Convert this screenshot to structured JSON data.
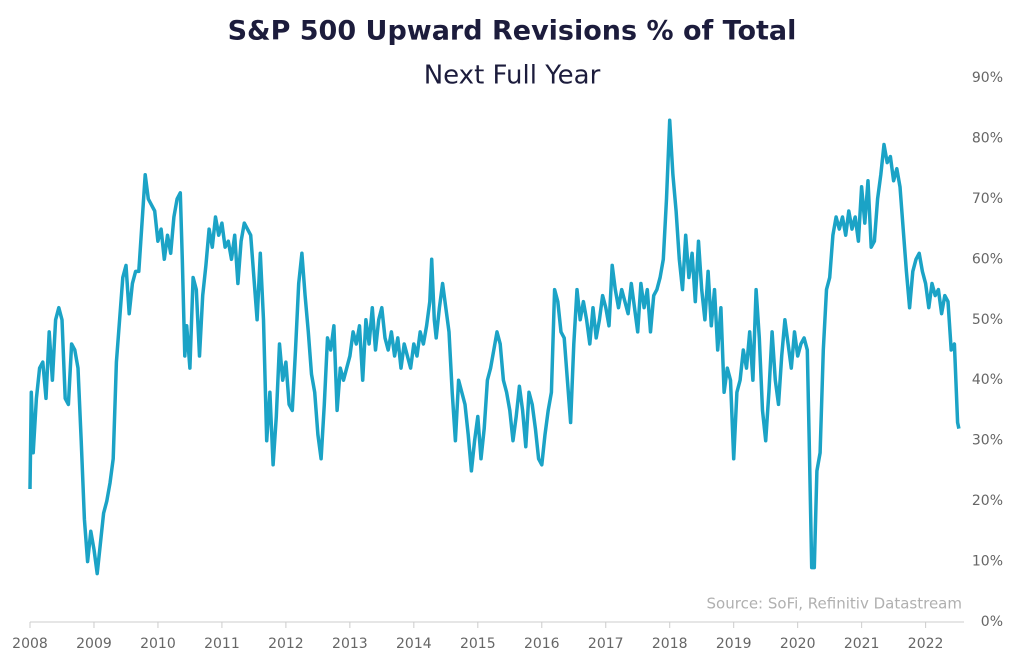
{
  "chart_data": {
    "type": "line",
    "title": "S&P 500 Upward Revisions % of Total",
    "subtitle": "Next Full Year",
    "source": "Source: SoFi, Refinitiv Datastream",
    "x": [
      2008.0,
      2008.02,
      2008.05,
      2008.1,
      2008.15,
      2008.2,
      2008.25,
      2008.3,
      2008.35,
      2008.4,
      2008.45,
      2008.5,
      2008.55,
      2008.6,
      2008.65,
      2008.7,
      2008.75,
      2008.8,
      2008.85,
      2008.9,
      2008.95,
      2009.0,
      2009.05,
      2009.1,
      2009.15,
      2009.2,
      2009.25,
      2009.3,
      2009.35,
      2009.4,
      2009.45,
      2009.5,
      2009.55,
      2009.6,
      2009.65,
      2009.7,
      2009.75,
      2009.8,
      2009.85,
      2009.95,
      2010.0,
      2010.05,
      2010.1,
      2010.15,
      2010.2,
      2010.25,
      2010.3,
      2010.35,
      2010.38,
      2010.42,
      2010.45,
      2010.5,
      2010.55,
      2010.6,
      2010.65,
      2010.7,
      2010.75,
      2010.8,
      2010.85,
      2010.9,
      2010.95,
      2011.0,
      2011.05,
      2011.1,
      2011.15,
      2011.2,
      2011.25,
      2011.3,
      2011.35,
      2011.45,
      2011.5,
      2011.55,
      2011.6,
      2011.65,
      2011.7,
      2011.75,
      2011.8,
      2011.85,
      2011.9,
      2011.95,
      2012.0,
      2012.05,
      2012.1,
      2012.15,
      2012.2,
      2012.25,
      2012.3,
      2012.35,
      2012.4,
      2012.45,
      2012.5,
      2012.55,
      2012.6,
      2012.65,
      2012.7,
      2012.75,
      2012.8,
      2012.85,
      2012.9,
      2013.0,
      2013.05,
      2013.1,
      2013.15,
      2013.2,
      2013.25,
      2013.3,
      2013.35,
      2013.4,
      2013.45,
      2013.5,
      2013.55,
      2013.6,
      2013.65,
      2013.7,
      2013.75,
      2013.8,
      2013.85,
      2013.95,
      2014.0,
      2014.05,
      2014.1,
      2014.15,
      2014.2,
      2014.25,
      2014.28,
      2014.32,
      2014.35,
      2014.4,
      2014.45,
      2014.5,
      2014.55,
      2014.6,
      2014.65,
      2014.7,
      2014.75,
      2014.8,
      2014.85,
      2014.9,
      2014.95,
      2015.0,
      2015.05,
      2015.1,
      2015.15,
      2015.2,
      2015.25,
      2015.3,
      2015.35,
      2015.4,
      2015.45,
      2015.5,
      2015.55,
      2015.6,
      2015.65,
      2015.7,
      2015.75,
      2015.8,
      2015.85,
      2015.9,
      2015.95,
      2016.0,
      2016.05,
      2016.1,
      2016.15,
      2016.2,
      2016.25,
      2016.3,
      2016.35,
      2016.4,
      2016.45,
      2016.5,
      2016.55,
      2016.6,
      2016.65,
      2016.7,
      2016.75,
      2016.8,
      2016.85,
      2016.9,
      2016.95,
      2017.0,
      2017.05,
      2017.1,
      2017.15,
      2017.2,
      2017.25,
      2017.3,
      2017.35,
      2017.4,
      2017.45,
      2017.5,
      2017.55,
      2017.6,
      2017.65,
      2017.7,
      2017.75,
      2017.8,
      2017.85,
      2017.9,
      2017.95,
      2018.0,
      2018.05,
      2018.1,
      2018.15,
      2018.2,
      2018.25,
      2018.3,
      2018.35,
      2018.4,
      2018.45,
      2018.5,
      2018.55,
      2018.6,
      2018.65,
      2018.7,
      2018.75,
      2018.8,
      2018.85,
      2018.9,
      2018.95,
      2019.0,
      2019.05,
      2019.1,
      2019.15,
      2019.2,
      2019.25,
      2019.3,
      2019.35,
      2019.4,
      2019.45,
      2019.5,
      2019.55,
      2019.6,
      2019.65,
      2019.7,
      2019.75,
      2019.8,
      2019.85,
      2019.9,
      2019.95,
      2020.0,
      2020.05,
      2020.1,
      2020.15,
      2020.18,
      2020.22,
      2020.26,
      2020.3,
      2020.35,
      2020.4,
      2020.45,
      2020.5,
      2020.55,
      2020.6,
      2020.65,
      2020.7,
      2020.75,
      2020.8,
      2020.85,
      2020.9,
      2020.95,
      2021.0,
      2021.05,
      2021.1,
      2021.15,
      2021.2,
      2021.25,
      2021.3,
      2021.35,
      2021.4,
      2021.45,
      2021.5,
      2021.55,
      2021.6,
      2021.65,
      2021.7,
      2021.75,
      2021.8,
      2021.85,
      2021.9,
      2021.95,
      2022.0,
      2022.05,
      2022.1,
      2022.15,
      2022.2,
      2022.25,
      2022.3,
      2022.35,
      2022.4,
      2022.45,
      2022.5,
      2022.52
    ],
    "series": [
      {
        "color": "#1ba3c6",
        "values": [
          22,
          38,
          28,
          37,
          42,
          43,
          37,
          48,
          40,
          50,
          52,
          50,
          37,
          36,
          46,
          45,
          42,
          30,
          17,
          10,
          15,
          12,
          8,
          13,
          18,
          20,
          23,
          27,
          43,
          50,
          57,
          59,
          51,
          56,
          58,
          58,
          66,
          74,
          70,
          68,
          63,
          65,
          60,
          64,
          61,
          67,
          70,
          71,
          60,
          44,
          49,
          42,
          57,
          55,
          44,
          54,
          59,
          65,
          62,
          67,
          64,
          66,
          62,
          63,
          60,
          64,
          56,
          63,
          66,
          64,
          57,
          50,
          61,
          50,
          30,
          38,
          26,
          34,
          46,
          40,
          43,
          36,
          35,
          45,
          56,
          61,
          54,
          48,
          41,
          38,
          31,
          27,
          36,
          47,
          45,
          49,
          35,
          42,
          40,
          44,
          48,
          46,
          49,
          40,
          50,
          46,
          52,
          45,
          50,
          52,
          47,
          45,
          48,
          44,
          47,
          42,
          46,
          42,
          46,
          44,
          48,
          46,
          49,
          53,
          60,
          50,
          47,
          52,
          56,
          52,
          48,
          38,
          30,
          40,
          38,
          36,
          31,
          25,
          30,
          34,
          27,
          32,
          40,
          42,
          45,
          48,
          46,
          40,
          38,
          35,
          30,
          34,
          39,
          35,
          29,
          38,
          36,
          32,
          27,
          26,
          31,
          35,
          38,
          55,
          53,
          48,
          47,
          40,
          33,
          46,
          55,
          50,
          53,
          50,
          46,
          52,
          47,
          50,
          54,
          52,
          49,
          59,
          55,
          52,
          55,
          53,
          51,
          56,
          52,
          48,
          56,
          52,
          55,
          48,
          54,
          55,
          57,
          60,
          70,
          83,
          74,
          68,
          60,
          55,
          64,
          57,
          61,
          53,
          63,
          55,
          50,
          58,
          49,
          55,
          45,
          52,
          38,
          42,
          40,
          27,
          38,
          40,
          45,
          42,
          48,
          40,
          55,
          47,
          35,
          30,
          38,
          48,
          40,
          36,
          44,
          50,
          46,
          42,
          48,
          44,
          46,
          47,
          45,
          30,
          9,
          9,
          25,
          28,
          45,
          55,
          57,
          64,
          67,
          65,
          67,
          64,
          68,
          65,
          67,
          63,
          72,
          66,
          73,
          62,
          63,
          70,
          74,
          79,
          76,
          77,
          73,
          75,
          72,
          65,
          58,
          52,
          58,
          60,
          61,
          58,
          56,
          52,
          56,
          54,
          55,
          51,
          54,
          53,
          45,
          46,
          33,
          32
        ]
      }
    ],
    "xlim": [
      2008,
      2022.6
    ],
    "xticks": [
      2008,
      2009,
      2010,
      2011,
      2012,
      2013,
      2014,
      2015,
      2016,
      2017,
      2018,
      2019,
      2020,
      2021,
      2022
    ],
    "ylim": [
      0,
      90
    ],
    "yticks": [
      {
        "value": 0,
        "label": "0%"
      },
      {
        "value": 10,
        "label": "10%"
      },
      {
        "value": 20,
        "label": "20%"
      },
      {
        "value": 30,
        "label": "30%"
      },
      {
        "value": 40,
        "label": "40%"
      },
      {
        "value": 50,
        "label": "50%"
      },
      {
        "value": 60,
        "label": "60%"
      },
      {
        "value": 70,
        "label": "70%"
      },
      {
        "value": 80,
        "label": "80%"
      },
      {
        "value": 90,
        "label": "90%"
      }
    ],
    "grid": false
  }
}
